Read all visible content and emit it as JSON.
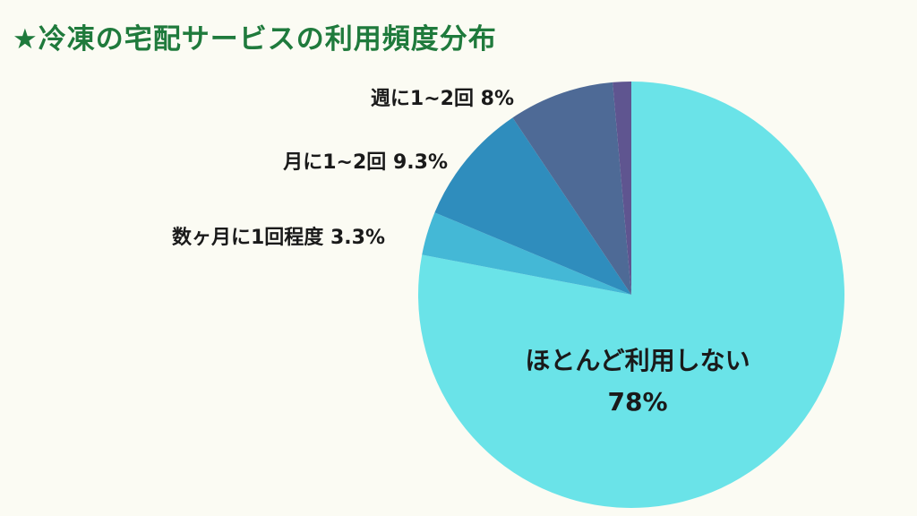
{
  "title": "★冷凍の宅配サービスの利用頻度分布",
  "colors": {
    "title": "#1f7a3c",
    "background": "#fbfbf3"
  },
  "chart_data": {
    "type": "pie",
    "title": "★冷凍の宅配サービスの利用頻度分布",
    "start_angle_deg": 0,
    "direction": "clockwise",
    "slices": [
      {
        "label": "ほとんど利用しない",
        "value": 78,
        "value_label": "78%",
        "color": "#6ae3e8"
      },
      {
        "label": "数ヶ月に1回程度",
        "value": 3.3,
        "value_label": "3.3%",
        "color": "#44b8d6"
      },
      {
        "label": "月に1~2回",
        "value": 9.3,
        "value_label": "9.3%",
        "color": "#2f8dbd"
      },
      {
        "label": "週に1~2回",
        "value": 8,
        "value_label": "8%",
        "color": "#4e6a96"
      },
      {
        "label": "",
        "value": 1.4,
        "value_label": "",
        "color": "#5f5590"
      }
    ]
  }
}
